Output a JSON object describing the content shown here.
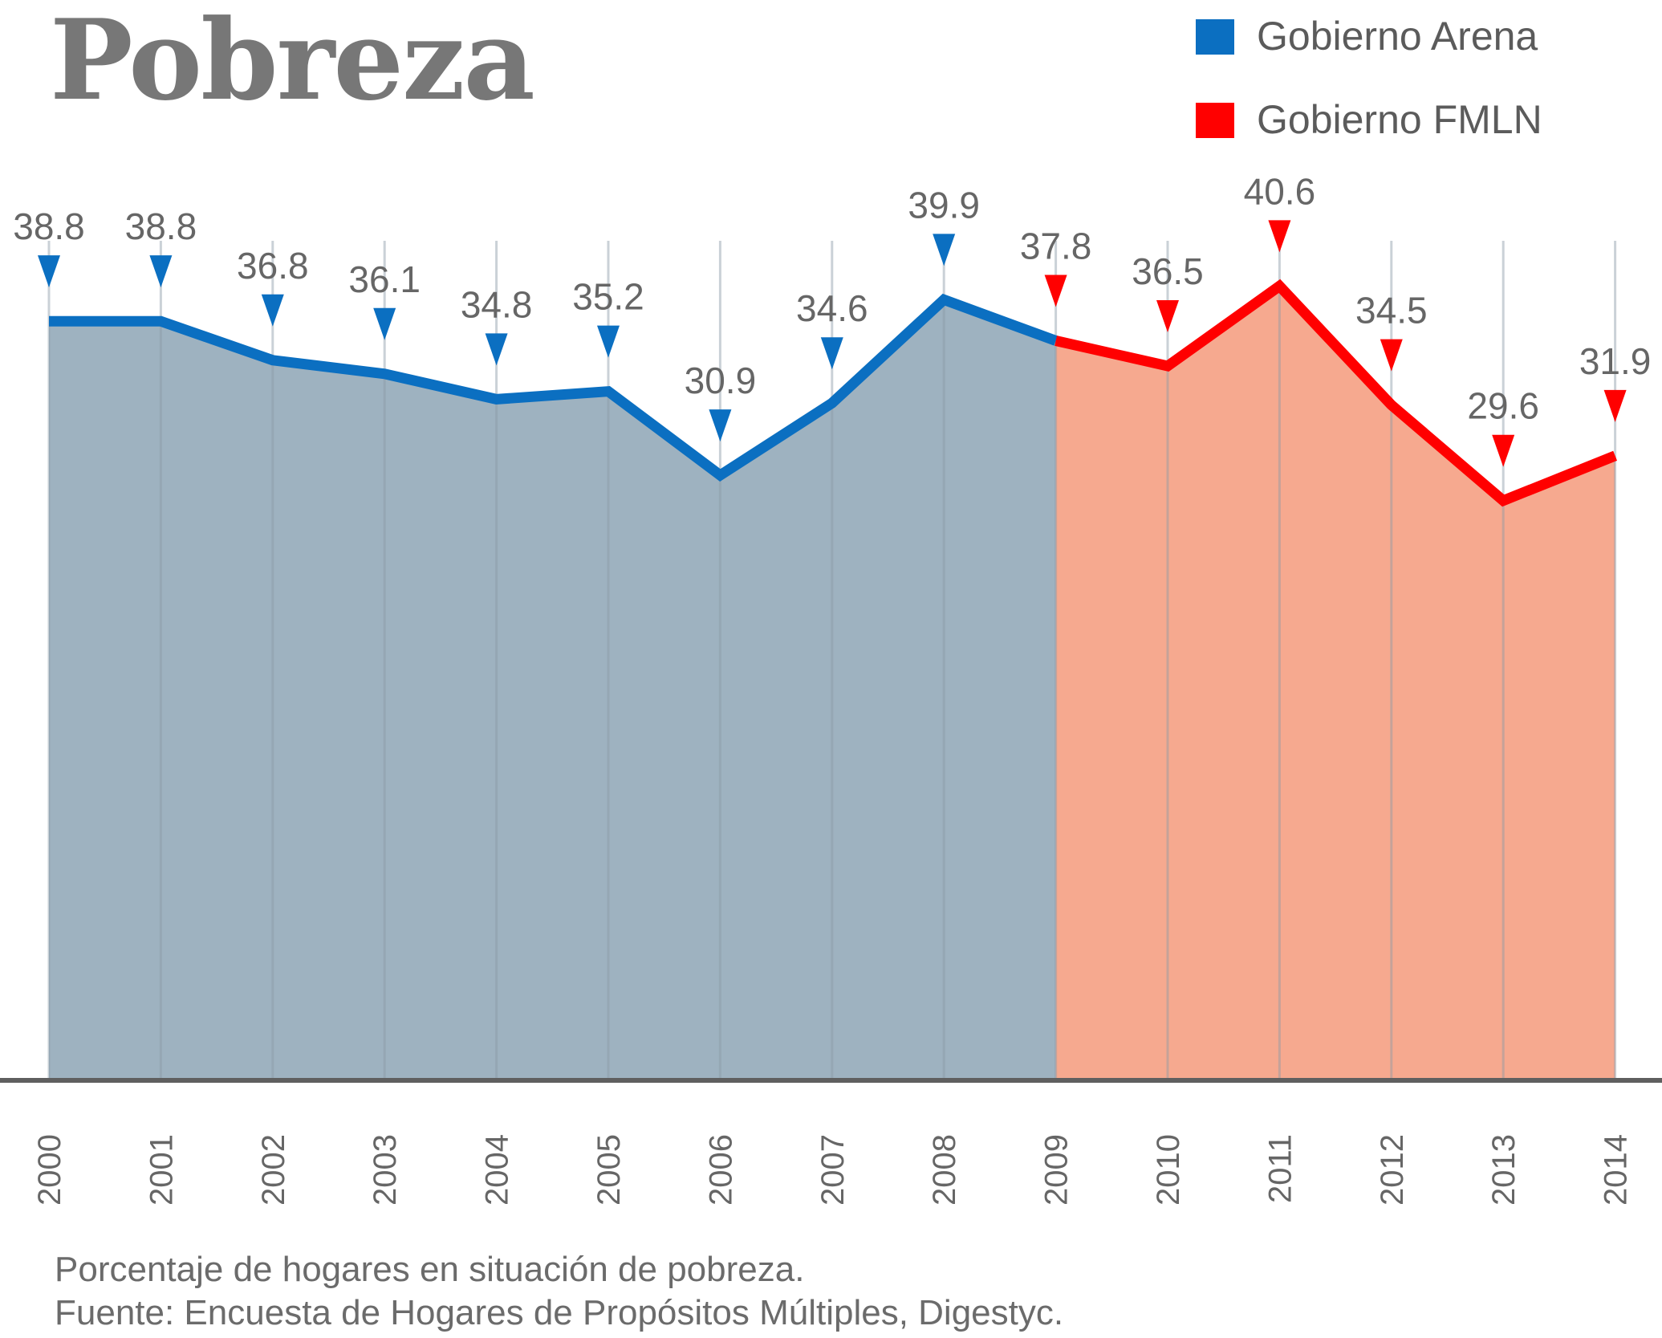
{
  "title": "Pobreza",
  "legend": [
    {
      "label": "Gobierno Arena",
      "color": "#0b6fc1"
    },
    {
      "label": "Gobierno FMLN",
      "color": "#ff0000"
    }
  ],
  "footnotes": {
    "description": "Porcentaje de hogares en situación de pobreza.",
    "source": "Fuente: Encuesta de Hogares de Propósitos Múltiples, Digestyc."
  },
  "chart_data": {
    "type": "area",
    "title": "Pobreza",
    "x": [
      "2000",
      "2001",
      "2002",
      "2003",
      "2004",
      "2005",
      "2006",
      "2007",
      "2008",
      "2009",
      "2010",
      "2011",
      "2012",
      "2013",
      "2014"
    ],
    "series": [
      {
        "name": "Gobierno Arena",
        "color": "#0b6fc1",
        "fill": "#9eb2c0",
        "x": [
          "2000",
          "2001",
          "2002",
          "2003",
          "2004",
          "2005",
          "2006",
          "2007",
          "2008",
          "2009"
        ],
        "values": [
          38.8,
          38.8,
          36.8,
          36.1,
          34.8,
          35.2,
          30.9,
          34.6,
          39.9,
          37.8
        ]
      },
      {
        "name": "Gobierno FMLN",
        "color": "#ff0000",
        "fill": "#f6a98f",
        "x": [
          "2009",
          "2010",
          "2011",
          "2012",
          "2013",
          "2014"
        ],
        "values": [
          37.8,
          36.5,
          40.6,
          34.5,
          29.6,
          31.9
        ]
      }
    ],
    "data_labels": [
      "38.8",
      "38.8",
      "36.8",
      "36.1",
      "34.8",
      "35.2",
      "30.9",
      "34.6",
      "39.9",
      "37.8",
      "36.5",
      "40.6",
      "34.5",
      "29.6",
      "31.9"
    ],
    "ylim": [
      0,
      41
    ],
    "grid": "vertical",
    "legend_position": "top-right",
    "xlabel": "",
    "ylabel": ""
  }
}
